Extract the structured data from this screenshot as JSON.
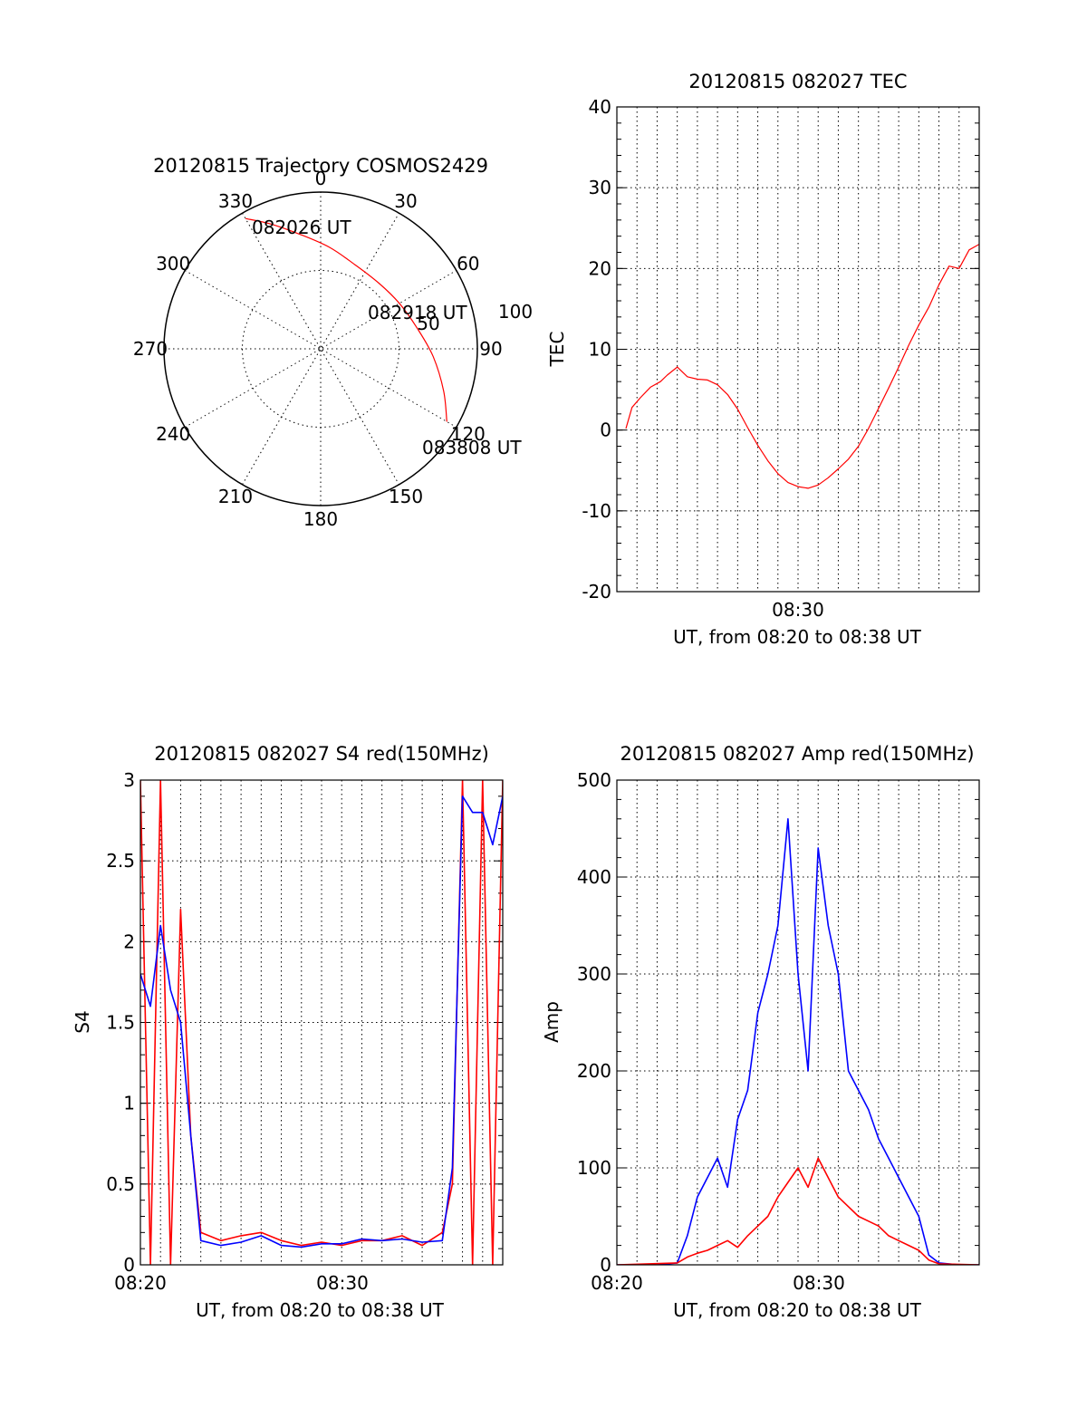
{
  "figure": {
    "background": "#ffffff",
    "colors": {
      "red": "#ff0000",
      "blue": "#0000ff",
      "axis": "#000000"
    }
  },
  "chart_data": [
    {
      "type": "polar",
      "title": "20120815 Trajectory COSMOS2429",
      "angle_labels": [
        "0",
        "30",
        "60",
        "90",
        "120",
        "150",
        "180",
        "210",
        "240",
        "270",
        "300",
        "330"
      ],
      "radial_labels": [
        "50",
        "100"
      ],
      "radial_range": [
        0,
        100
      ],
      "series": [
        {
          "color": "#ff0000",
          "points": [
            {
              "azimuth": 330,
              "zenith": 96
            },
            {
              "azimuth": 338,
              "zenith": 86
            },
            {
              "azimuth": 350,
              "zenith": 74
            },
            {
              "azimuth": 5,
              "zenith": 65
            },
            {
              "azimuth": 22,
              "zenith": 58
            },
            {
              "azimuth": 42,
              "zenith": 56
            },
            {
              "azimuth": 60,
              "zenith": 58
            },
            {
              "azimuth": 78,
              "zenith": 63
            },
            {
              "azimuth": 94,
              "zenith": 72
            },
            {
              "azimuth": 109,
              "zenith": 83
            },
            {
              "azimuth": 120,
              "zenith": 93
            }
          ]
        }
      ],
      "annotations": [
        {
          "text": "082026 UT",
          "azimuth": 330,
          "zenith": 96
        },
        {
          "text": "082918 UT",
          "azimuth": 62,
          "zenith": 57
        },
        {
          "text": "083808 UT",
          "azimuth": 120,
          "zenith": 93
        }
      ],
      "grid": true
    },
    {
      "type": "line",
      "title": "20120815 082027 TEC",
      "xlabel": "UT, from 08:20 to 08:38 UT",
      "ylabel": "TEC",
      "x_ticks": [
        "08:30"
      ],
      "y_ticks": [
        "-20",
        "-10",
        "0",
        "10",
        "20",
        "30",
        "40"
      ],
      "xlim": [
        "08:20:00",
        "08:38:00"
      ],
      "ylim": [
        -20,
        40
      ],
      "grid": true,
      "series": [
        {
          "color": "#ff0000",
          "x": [
            "08:20:27",
            "08:20:45",
            "08:21:10",
            "08:21:40",
            "08:22:10",
            "08:22:30",
            "08:23:00",
            "08:23:30",
            "08:24:00",
            "08:24:30",
            "08:25:00",
            "08:25:30",
            "08:26:00",
            "08:26:30",
            "08:27:00",
            "08:27:30",
            "08:28:00",
            "08:28:30",
            "08:29:00",
            "08:29:30",
            "08:30:00",
            "08:30:30",
            "08:31:00",
            "08:31:30",
            "08:32:00",
            "08:32:30",
            "08:33:00",
            "08:33:30",
            "08:34:00",
            "08:34:30",
            "08:35:00",
            "08:35:30",
            "08:36:00",
            "08:36:30",
            "08:37:00",
            "08:37:30",
            "08:38:00"
          ],
          "values": [
            0.2,
            2.8,
            4.0,
            5.3,
            6.0,
            6.8,
            7.8,
            6.6,
            6.3,
            6.2,
            5.6,
            4.4,
            2.6,
            0.3,
            -1.9,
            -3.8,
            -5.4,
            -6.5,
            -7.0,
            -7.2,
            -6.8,
            -5.9,
            -4.8,
            -3.6,
            -2.0,
            0.2,
            2.7,
            5.2,
            7.8,
            10.5,
            13.0,
            15.2,
            18.0,
            20.3,
            20.0,
            22.3,
            23.0
          ]
        }
      ]
    },
    {
      "type": "line",
      "title": "20120815 082027 S4 red(150MHz)",
      "xlabel": "UT, from 08:20 to 08:38 UT",
      "ylabel": "S4",
      "x_ticks": [
        "08:20",
        "08:30"
      ],
      "y_ticks": [
        "0",
        "0.5",
        "1",
        "1.5",
        "2",
        "2.5",
        "3"
      ],
      "xlim": [
        "08:20:00",
        "08:38:00"
      ],
      "ylim": [
        0,
        3
      ],
      "grid": true,
      "series": [
        {
          "color": "#ff0000",
          "x": [
            "08:20:00",
            "08:20:30",
            "08:21:00",
            "08:21:30",
            "08:22:00",
            "08:22:30",
            "08:23:00",
            "08:24:00",
            "08:25:00",
            "08:26:00",
            "08:27:00",
            "08:28:00",
            "08:29:00",
            "08:30:00",
            "08:31:00",
            "08:32:00",
            "08:33:00",
            "08:34:00",
            "08:35:00",
            "08:35:30",
            "08:36:00",
            "08:36:30",
            "08:37:00",
            "08:37:30",
            "08:38:00"
          ],
          "values": [
            3.0,
            0.0,
            3.0,
            0.0,
            2.2,
            0.8,
            0.2,
            0.15,
            0.18,
            0.2,
            0.15,
            0.12,
            0.14,
            0.12,
            0.15,
            0.15,
            0.18,
            0.12,
            0.2,
            0.5,
            3.0,
            0.0,
            3.0,
            0.0,
            3.0
          ]
        },
        {
          "color": "#0000ff",
          "x": [
            "08:20:00",
            "08:20:30",
            "08:21:00",
            "08:21:30",
            "08:22:00",
            "08:22:30",
            "08:23:00",
            "08:24:00",
            "08:25:00",
            "08:26:00",
            "08:27:00",
            "08:28:00",
            "08:29:00",
            "08:30:00",
            "08:31:00",
            "08:32:00",
            "08:33:00",
            "08:34:00",
            "08:35:00",
            "08:35:30",
            "08:36:00",
            "08:36:30",
            "08:37:00",
            "08:37:30",
            "08:38:00"
          ],
          "values": [
            1.8,
            1.6,
            2.1,
            1.7,
            1.5,
            0.8,
            0.15,
            0.12,
            0.14,
            0.18,
            0.12,
            0.11,
            0.13,
            0.13,
            0.16,
            0.15,
            0.16,
            0.14,
            0.15,
            0.6,
            2.9,
            2.8,
            2.8,
            2.6,
            2.9
          ]
        }
      ]
    },
    {
      "type": "line",
      "title": "20120815 082027 Amp red(150MHz)",
      "xlabel": "UT, from 08:20 to 08:38 UT",
      "ylabel": "Amp",
      "x_ticks": [
        "08:20",
        "08:30"
      ],
      "y_ticks": [
        "0",
        "100",
        "200",
        "300",
        "400",
        "500"
      ],
      "xlim": [
        "08:20:00",
        "08:38:00"
      ],
      "ylim": [
        0,
        500
      ],
      "grid": true,
      "series": [
        {
          "color": "#0000ff",
          "x": [
            "08:20:00",
            "08:22:00",
            "08:23:00",
            "08:23:30",
            "08:24:00",
            "08:24:30",
            "08:25:00",
            "08:25:30",
            "08:26:00",
            "08:26:30",
            "08:27:00",
            "08:27:30",
            "08:28:00",
            "08:28:30",
            "08:29:00",
            "08:29:30",
            "08:30:00",
            "08:30:30",
            "08:31:00",
            "08:31:30",
            "08:32:00",
            "08:32:30",
            "08:33:00",
            "08:33:30",
            "08:34:00",
            "08:34:30",
            "08:35:00",
            "08:35:30",
            "08:36:00",
            "08:37:00",
            "08:38:00"
          ],
          "values": [
            0,
            0,
            2,
            30,
            70,
            90,
            110,
            80,
            150,
            180,
            260,
            300,
            350,
            460,
            300,
            200,
            430,
            350,
            300,
            200,
            180,
            160,
            130,
            110,
            90,
            70,
            50,
            10,
            2,
            0,
            0
          ]
        },
        {
          "color": "#ff0000",
          "x": [
            "08:20:00",
            "08:23:00",
            "08:23:30",
            "08:24:00",
            "08:24:30",
            "08:25:00",
            "08:25:30",
            "08:26:00",
            "08:26:30",
            "08:27:00",
            "08:27:30",
            "08:28:00",
            "08:28:30",
            "08:29:00",
            "08:29:30",
            "08:30:00",
            "08:30:30",
            "08:31:00",
            "08:31:30",
            "08:32:00",
            "08:32:30",
            "08:33:00",
            "08:33:30",
            "08:34:00",
            "08:34:30",
            "08:35:00",
            "08:35:30",
            "08:36:00",
            "08:38:00"
          ],
          "values": [
            0,
            2,
            8,
            12,
            15,
            20,
            25,
            18,
            30,
            40,
            50,
            70,
            85,
            100,
            80,
            110,
            90,
            70,
            60,
            50,
            45,
            40,
            30,
            25,
            20,
            15,
            5,
            1,
            0
          ]
        }
      ]
    }
  ]
}
